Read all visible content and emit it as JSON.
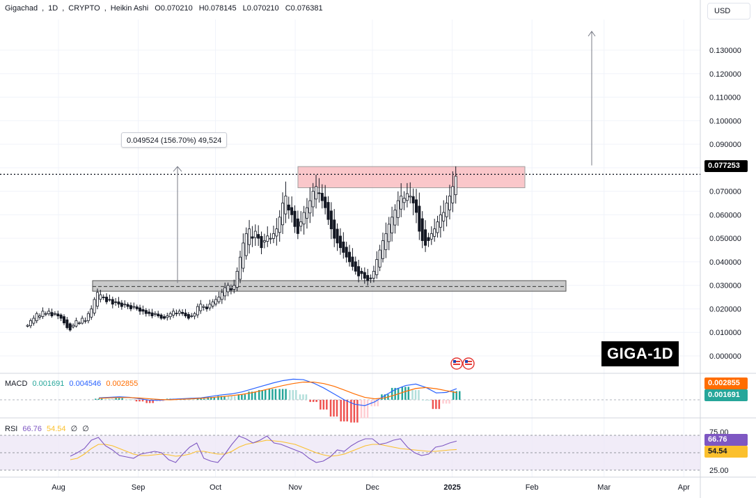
{
  "header": {
    "symbol": "Gigachad",
    "interval": "1D",
    "exchange": "CRYPTO",
    "chart_style": "Heikin Ashi",
    "open": "O0.070210",
    "high": "H0.078145",
    "low": "L0.070210",
    "close": "C0.076381"
  },
  "currency_label": "USD",
  "watermark": "GIGA-1D",
  "price_axis": {
    "ticks": [
      "0.130000",
      "0.120000",
      "0.110000",
      "0.100000",
      "0.090000",
      "0.080000",
      "0.070000",
      "0.060000",
      "0.050000",
      "0.040000",
      "0.030000",
      "0.020000",
      "0.010000",
      "0.000000"
    ],
    "current_price": "0.077253"
  },
  "time_axis": {
    "labels": [
      "Aug",
      "Sep",
      "Oct",
      "Nov",
      "Dec",
      "2025",
      "Feb",
      "Mar",
      "Apr"
    ]
  },
  "measure_tool": {
    "label": "0.049524 (156.70%) 49,524"
  },
  "macd": {
    "name": "MACD",
    "histogram_value": "0.001691",
    "macd_value": "0.004546",
    "signal_value": "0.002855",
    "tag_signal": "0.002855",
    "tag_hist": "0.001691",
    "colors": {
      "macd": "#2962ff",
      "signal": "#ff6d00",
      "hist_pos": "#26a69a",
      "hist_neg": "#ef5350",
      "hist_pos_light": "#b2dfdb",
      "hist_neg_light": "#ffcdd2"
    }
  },
  "rsi": {
    "name": "RSI",
    "value": "66.76",
    "ma_value": "54.54",
    "extra1": "∅",
    "extra2": "∅",
    "axis_top": "75.00",
    "axis_bottom": "25.00",
    "tag_rsi": "66.76",
    "tag_ma": "54.54",
    "colors": {
      "rsi": "#7e57c2",
      "ma": "#fbc02d",
      "band": "#ede7f6"
    }
  },
  "chart_data": {
    "type": "candlestick",
    "style": "Heikin Ashi",
    "y_range": [
      0,
      0.13
    ],
    "start_date": "2024-07-20",
    "end_date": "2025-01-03",
    "close_series": [
      0.013,
      0.015,
      0.016,
      0.018,
      0.017,
      0.019,
      0.018,
      0.019,
      0.017,
      0.018,
      0.017,
      0.016,
      0.014,
      0.012,
      0.011,
      0.013,
      0.015,
      0.014,
      0.016,
      0.015,
      0.018,
      0.02,
      0.024,
      0.027,
      0.026,
      0.025,
      0.023,
      0.024,
      0.022,
      0.023,
      0.022,
      0.021,
      0.022,
      0.021,
      0.02,
      0.021,
      0.02,
      0.019,
      0.019,
      0.018,
      0.018,
      0.017,
      0.018,
      0.017,
      0.016,
      0.016,
      0.017,
      0.018,
      0.019,
      0.018,
      0.019,
      0.018,
      0.017,
      0.016,
      0.017,
      0.018,
      0.021,
      0.022,
      0.021,
      0.02,
      0.022,
      0.023,
      0.024,
      0.025,
      0.027,
      0.029,
      0.03,
      0.028,
      0.03,
      0.036,
      0.042,
      0.048,
      0.052,
      0.054,
      0.05,
      0.053,
      0.05,
      0.046,
      0.049,
      0.051,
      0.05,
      0.052,
      0.054,
      0.059,
      0.065,
      0.068,
      0.062,
      0.06,
      0.055,
      0.052,
      0.057,
      0.061,
      0.063,
      0.066,
      0.07,
      0.072,
      0.069,
      0.066,
      0.063,
      0.058,
      0.054,
      0.05,
      0.048,
      0.046,
      0.044,
      0.042,
      0.04,
      0.038,
      0.036,
      0.034,
      0.035,
      0.033,
      0.032,
      0.033,
      0.036,
      0.041,
      0.045,
      0.049,
      0.052,
      0.056,
      0.059,
      0.062,
      0.066,
      0.068,
      0.067,
      0.069,
      0.068,
      0.065,
      0.061,
      0.053,
      0.049,
      0.047,
      0.049,
      0.052,
      0.054,
      0.057,
      0.06,
      0.061,
      0.065,
      0.068,
      0.072,
      0.0764
    ],
    "levels": [
      {
        "name": "support zone",
        "low": 0.0275,
        "high": 0.032,
        "midline": 0.0295
      },
      {
        "name": "resistance zone",
        "low": 0.0715,
        "high": 0.0805
      }
    ],
    "measure": {
      "from": 0.031,
      "to": 0.0805,
      "change": 0.049524,
      "change_pct": 156.7,
      "ticks": 49524
    },
    "projection_arrow": {
      "from": 0.081,
      "to": 0.138
    },
    "macd": {
      "macd_line": [
        0.0008,
        0.001,
        0.0012,
        0.001,
        0.0004,
        -0.0002,
        -0.0002,
        0.0002,
        0.0004,
        0.0006,
        0.0008,
        0.0014,
        0.002,
        0.0024,
        0.0032,
        0.0044,
        0.0056,
        0.0068,
        0.0078,
        0.0084,
        0.0082,
        0.0068,
        0.0048,
        0.0024,
        0,
        -0.0018,
        -0.0024,
        -0.0008,
        0.0018,
        0.0042,
        0.0058,
        0.0064,
        0.005,
        0.0028,
        0.003,
        0.0045
      ],
      "signal_line": [
        0.0006,
        0.0008,
        0.0009,
        0.0009,
        0.0007,
        0.0004,
        0.0001,
        0,
        0.0002,
        0.0004,
        0.0006,
        0.0009,
        0.0013,
        0.0017,
        0.0022,
        0.0029,
        0.0038,
        0.0048,
        0.0058,
        0.0066,
        0.0072,
        0.0072,
        0.0066,
        0.0055,
        0.004,
        0.0024,
        0.001,
        0.0004,
        0.0008,
        0.002,
        0.0034,
        0.0046,
        0.005,
        0.0045,
        0.0037,
        0.0029
      ]
    },
    "rsi": {
      "rsi_line": [
        45,
        50,
        56,
        68,
        72,
        60,
        54,
        46,
        44,
        42,
        48,
        50,
        52,
        50,
        40,
        36,
        48,
        58,
        64,
        42,
        38,
        36,
        48,
        62,
        74,
        70,
        64,
        68,
        74,
        64,
        62,
        58,
        54,
        50,
        42,
        36,
        38,
        44,
        54,
        52,
        60,
        66,
        70,
        70,
        62,
        64,
        68,
        70,
        58,
        50,
        46,
        48,
        58,
        60,
        64,
        66.76
      ],
      "rsi_ma": [
        40,
        42,
        48,
        56,
        62,
        62,
        60,
        56,
        52,
        48,
        46,
        46,
        47,
        48,
        47,
        45,
        46,
        48,
        52,
        52,
        50,
        48,
        48,
        52,
        58,
        62,
        64,
        66,
        68,
        67,
        66,
        64,
        62,
        58,
        54,
        50,
        47,
        45,
        46,
        48,
        52,
        56,
        60,
        62,
        62,
        60,
        58,
        56,
        55,
        54,
        53,
        52,
        52,
        53,
        54,
        54.54
      ]
    }
  }
}
